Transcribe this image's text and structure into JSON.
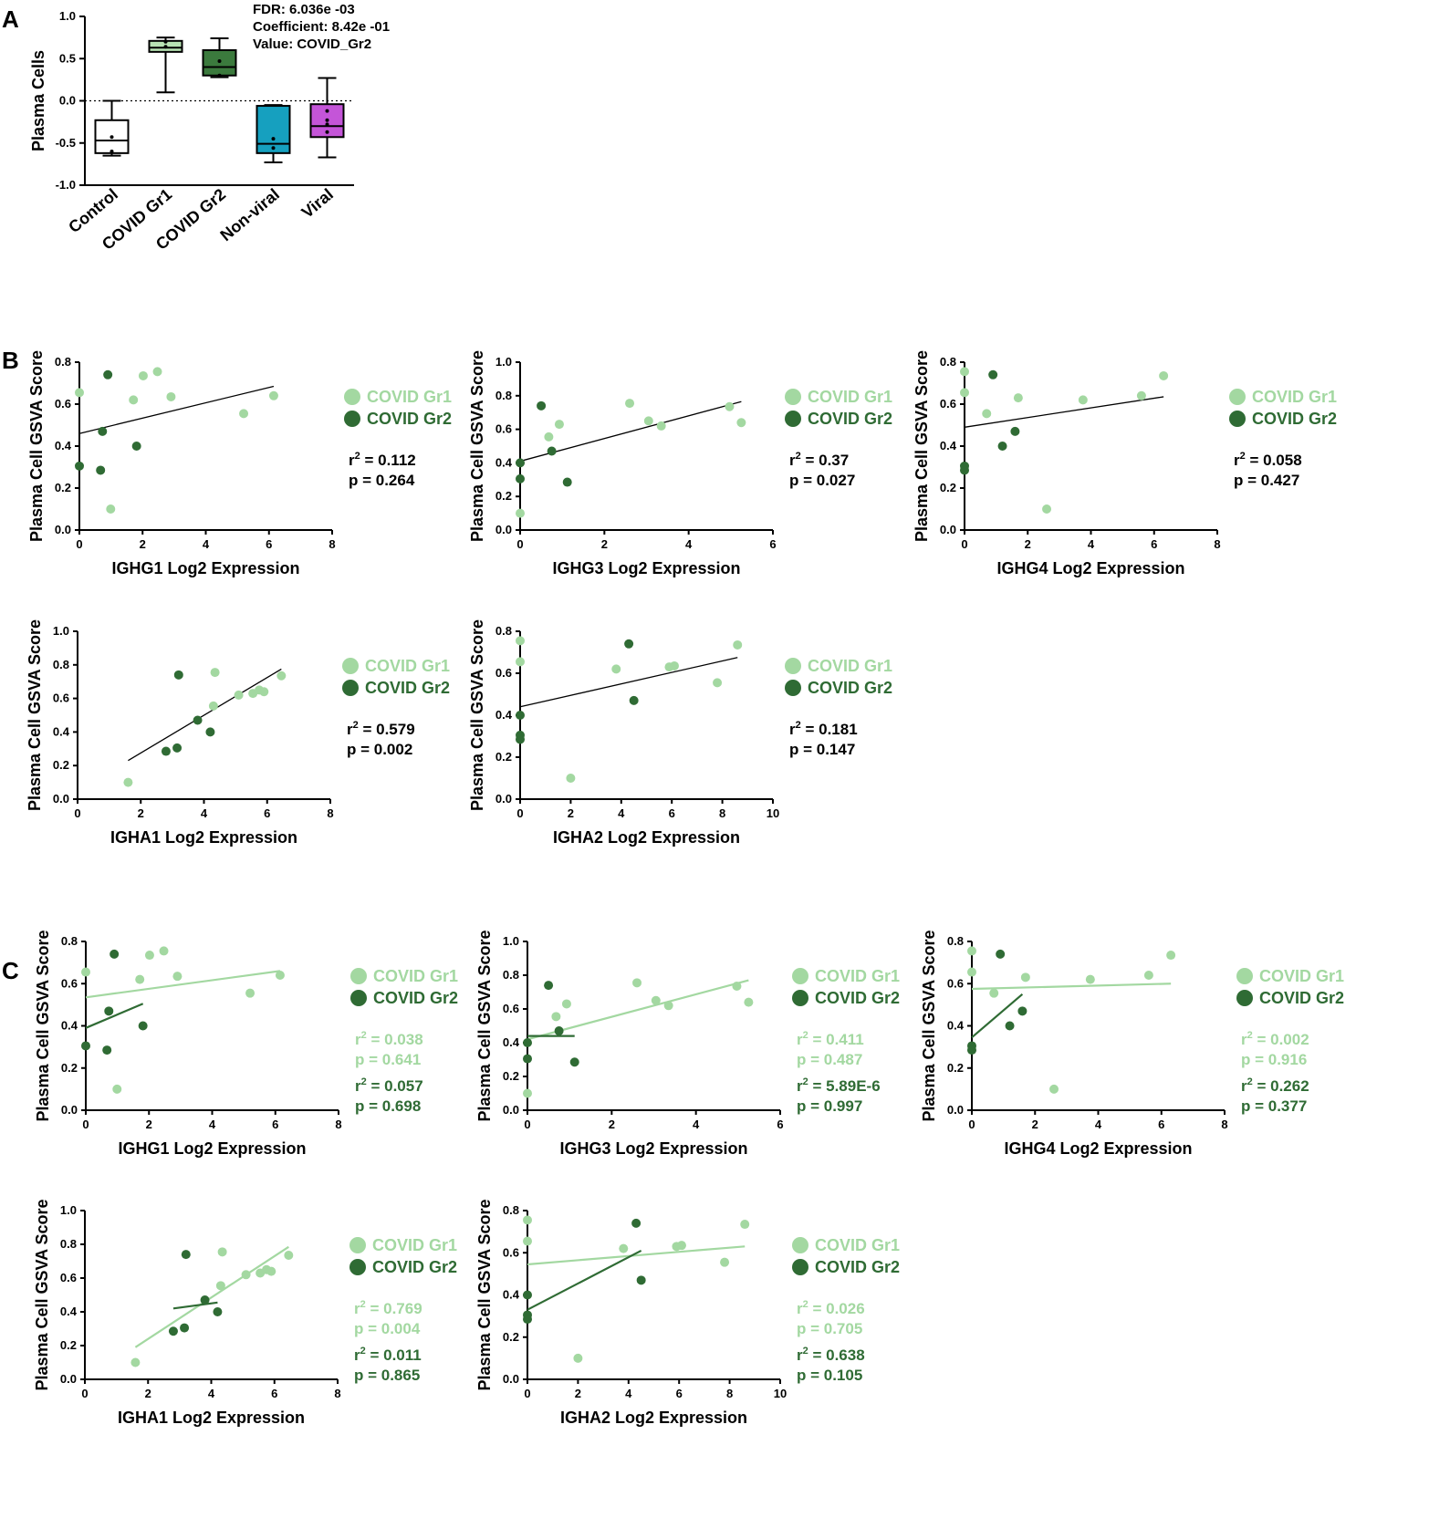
{
  "panels": {
    "A": "A",
    "B": "B",
    "C": "C"
  },
  "colors": {
    "gr1": "#a3d8a1",
    "gr2": "#2f6b34",
    "control": "#ffffff",
    "covid_gr1_box": "#b8e3b3",
    "covid_gr2_box": "#3b7a3d",
    "non_viral_box": "#16a0bf",
    "viral_box": "#c455d8",
    "axis": "#000000",
    "trend_black": "#000000"
  },
  "legend": {
    "gr1": "COVID Gr1",
    "gr2": "COVID Gr2"
  },
  "chart_data": [
    {
      "id": "A",
      "type": "box",
      "ylabel": "Plasma Cells",
      "ylim": [
        -1.0,
        1.0
      ],
      "yticks": [
        "1.0",
        "0.5",
        "0.0",
        "-0.5",
        "-1.0"
      ],
      "reference_line": 0,
      "annotation": [
        "FDR: 6.036e -03",
        "Coefficient: 8.42e -01",
        "Value: COVID_Gr2"
      ],
      "categories": [
        "Control",
        "COVID Gr1",
        "COVID Gr2",
        "Non-viral",
        "Viral"
      ],
      "boxes": [
        {
          "min": -0.65,
          "q1": -0.62,
          "median": -0.47,
          "q3": -0.23,
          "max": 0.0,
          "mean": -0.43,
          "points": [
            -0.6
          ],
          "color_key": "control"
        },
        {
          "min": 0.1,
          "q1": 0.58,
          "median": 0.63,
          "q3": 0.71,
          "max": 0.75,
          "mean": 0.64,
          "points": [
            0.7
          ],
          "color_key": "covid_gr1_box"
        },
        {
          "min": 0.28,
          "q1": 0.3,
          "median": 0.4,
          "q3": 0.6,
          "max": 0.74,
          "mean": 0.47,
          "points": [
            0.3
          ],
          "color_key": "covid_gr2_box"
        },
        {
          "min": -0.73,
          "q1": -0.62,
          "median": -0.51,
          "q3": -0.06,
          "max": -0.05,
          "mean": -0.45,
          "points": [
            -0.56
          ],
          "color_key": "non_viral_box"
        },
        {
          "min": -0.67,
          "q1": -0.43,
          "median": -0.3,
          "q3": -0.04,
          "max": 0.27,
          "mean": -0.23,
          "points": [
            -0.12,
            -0.28,
            -0.37
          ],
          "color_key": "viral_box"
        }
      ]
    },
    {
      "id": "B1",
      "type": "scatter",
      "xlabel": "IGHG1 Log2 Expression",
      "ylabel": "Plasma Cell GSVA Score",
      "xlim": [
        0,
        8
      ],
      "ylim": [
        0,
        0.8
      ],
      "xticks": [
        0,
        2,
        4,
        6,
        8
      ],
      "yticks": [
        "0.0",
        "0.2",
        "0.4",
        "0.6",
        "0.8"
      ],
      "series": [
        {
          "name": "COVID Gr1",
          "key": "gr1",
          "x": [
            0.0,
            0.99,
            1.71,
            2.02,
            2.47,
            2.9,
            5.2,
            6.15
          ],
          "y": [
            0.655,
            0.1,
            0.62,
            0.735,
            0.755,
            0.635,
            0.555,
            0.64
          ]
        },
        {
          "name": "COVID Gr2",
          "key": "gr2",
          "x": [
            0.0,
            0.67,
            0.73,
            0.9,
            1.81
          ],
          "y": [
            0.305,
            0.285,
            0.47,
            0.74,
            0.4
          ]
        }
      ],
      "trends": [
        {
          "key": "black",
          "x": [
            0.0,
            6.15
          ],
          "y": [
            0.46,
            0.685
          ]
        }
      ],
      "stats": [
        {
          "key": "black",
          "r2": "= 0.112",
          "p": "p = 0.264"
        }
      ]
    },
    {
      "id": "B2",
      "type": "scatter",
      "xlabel": "IGHG3 Log2 Expression",
      "ylabel": "Plasma Cell GSVA Score",
      "xlim": [
        0,
        6
      ],
      "ylim": [
        0,
        1.0
      ],
      "xticks": [
        0,
        2,
        4,
        6
      ],
      "yticks": [
        "0.0",
        "0.2",
        "0.4",
        "0.6",
        "0.8",
        "1.0"
      ],
      "series": [
        {
          "name": "COVID Gr1",
          "key": "gr1",
          "x": [
            0.0,
            0.68,
            0.93,
            2.6,
            3.05,
            3.35,
            4.97,
            5.25
          ],
          "y": [
            0.1,
            0.555,
            0.63,
            0.755,
            0.65,
            0.62,
            0.735,
            0.64
          ]
        },
        {
          "name": "COVID Gr2",
          "key": "gr2",
          "x": [
            0.0,
            0.0,
            0.5,
            0.75,
            1.12
          ],
          "y": [
            0.305,
            0.4,
            0.74,
            0.47,
            0.285
          ]
        }
      ],
      "trends": [
        {
          "key": "black",
          "x": [
            0.0,
            5.25
          ],
          "y": [
            0.41,
            0.765
          ]
        }
      ],
      "stats": [
        {
          "key": "black",
          "r2": "= 0.37",
          "p": "p = 0.027"
        }
      ]
    },
    {
      "id": "B3",
      "type": "scatter",
      "xlabel": "IGHG4 Log2 Expression",
      "ylabel": "Plasma Cell GSVA Score",
      "xlim": [
        0,
        8
      ],
      "ylim": [
        0,
        0.8
      ],
      "xticks": [
        0,
        2,
        4,
        6,
        8
      ],
      "yticks": [
        "0.0",
        "0.2",
        "0.4",
        "0.6",
        "0.8"
      ],
      "series": [
        {
          "name": "COVID Gr1",
          "key": "gr1",
          "x": [
            0.0,
            0.0,
            0.7,
            1.7,
            2.6,
            3.75,
            5.6,
            6.3
          ],
          "y": [
            0.755,
            0.655,
            0.555,
            0.63,
            0.1,
            0.62,
            0.64,
            0.735
          ]
        },
        {
          "name": "COVID Gr2",
          "key": "gr2",
          "x": [
            0.0,
            0.0,
            0.9,
            1.2,
            1.6
          ],
          "y": [
            0.305,
            0.285,
            0.74,
            0.4,
            0.47
          ]
        }
      ],
      "trends": [
        {
          "key": "black",
          "x": [
            0.0,
            6.3
          ],
          "y": [
            0.49,
            0.635
          ]
        }
      ],
      "stats": [
        {
          "key": "black",
          "r2": "= 0.058",
          "p": "p = 0.427"
        }
      ]
    },
    {
      "id": "B4",
      "type": "scatter",
      "xlabel": "IGHA1 Log2 Expression",
      "ylabel": "Plasma Cell GSVA Score",
      "xlim": [
        0,
        8
      ],
      "ylim": [
        0,
        1.0
      ],
      "xticks": [
        0,
        2,
        4,
        6,
        8
      ],
      "yticks": [
        "0.0",
        "0.2",
        "0.4",
        "0.6",
        "0.8",
        "1.0"
      ],
      "series": [
        {
          "name": "COVID Gr1",
          "key": "gr1",
          "x": [
            1.6,
            4.35,
            4.3,
            5.1,
            5.55,
            5.75,
            5.9,
            6.45
          ],
          "y": [
            0.1,
            0.755,
            0.555,
            0.62,
            0.63,
            0.65,
            0.64,
            0.735
          ]
        },
        {
          "name": "COVID Gr2",
          "key": "gr2",
          "x": [
            2.8,
            3.15,
            3.2,
            3.8,
            4.2
          ],
          "y": [
            0.285,
            0.305,
            0.74,
            0.47,
            0.4
          ]
        }
      ],
      "trends": [
        {
          "key": "black",
          "x": [
            1.6,
            6.45
          ],
          "y": [
            0.23,
            0.775
          ]
        }
      ],
      "stats": [
        {
          "key": "black",
          "r2": "= 0.579",
          "p": "p = 0.002"
        }
      ]
    },
    {
      "id": "B5",
      "type": "scatter",
      "xlabel": "IGHA2 Log2 Expression",
      "ylabel": "Plasma Cell GSVA Score",
      "xlim": [
        0,
        10
      ],
      "ylim": [
        0,
        0.8
      ],
      "xticks": [
        0,
        2,
        4,
        6,
        8,
        10
      ],
      "yticks": [
        "0.0",
        "0.2",
        "0.4",
        "0.6",
        "0.8"
      ],
      "series": [
        {
          "name": "COVID Gr1",
          "key": "gr1",
          "x": [
            0.0,
            0.0,
            2.0,
            3.8,
            5.9,
            6.1,
            7.8,
            8.6
          ],
          "y": [
            0.755,
            0.655,
            0.1,
            0.62,
            0.63,
            0.635,
            0.555,
            0.735
          ]
        },
        {
          "name": "COVID Gr2",
          "key": "gr2",
          "x": [
            0.0,
            0.0,
            0.0,
            4.3,
            4.5
          ],
          "y": [
            0.4,
            0.305,
            0.285,
            0.74,
            0.47
          ]
        }
      ],
      "trends": [
        {
          "key": "black",
          "x": [
            0.0,
            8.6
          ],
          "y": [
            0.44,
            0.675
          ]
        }
      ],
      "stats": [
        {
          "key": "black",
          "r2": "= 0.181",
          "p": "p = 0.147"
        }
      ]
    },
    {
      "id": "C1",
      "type": "scatter",
      "xlabel": "IGHG1 Log2 Expression",
      "ylabel": "Plasma Cell GSVA Score",
      "xlim": [
        0,
        8
      ],
      "ylim": [
        0,
        0.8
      ],
      "xticks": [
        0,
        2,
        4,
        6,
        8
      ],
      "yticks": [
        "0.0",
        "0.2",
        "0.4",
        "0.6",
        "0.8"
      ],
      "series": [
        {
          "name": "COVID Gr1",
          "key": "gr1",
          "x": [
            0.0,
            0.99,
            1.71,
            2.02,
            2.47,
            2.9,
            5.2,
            6.15
          ],
          "y": [
            0.655,
            0.1,
            0.62,
            0.735,
            0.755,
            0.635,
            0.555,
            0.64
          ]
        },
        {
          "name": "COVID Gr2",
          "key": "gr2",
          "x": [
            0.0,
            0.67,
            0.73,
            0.9,
            1.81
          ],
          "y": [
            0.305,
            0.285,
            0.47,
            0.74,
            0.4
          ]
        }
      ],
      "trends": [
        {
          "key": "gr1",
          "x": [
            0.0,
            6.15
          ],
          "y": [
            0.535,
            0.66
          ]
        },
        {
          "key": "gr2",
          "x": [
            0.0,
            1.81
          ],
          "y": [
            0.39,
            0.505
          ]
        }
      ],
      "stats": [
        {
          "key": "gr1",
          "r2": "= 0.038",
          "p": "p = 0.641"
        },
        {
          "key": "gr2",
          "r2": "= 0.057",
          "p": "p = 0.698"
        }
      ]
    },
    {
      "id": "C2",
      "type": "scatter",
      "xlabel": "IGHG3 Log2 Expression",
      "ylabel": "Plasma Cell GSVA Score",
      "xlim": [
        0,
        6
      ],
      "ylim": [
        0,
        1.0
      ],
      "xticks": [
        0,
        2,
        4,
        6
      ],
      "yticks": [
        "0.0",
        "0.2",
        "0.4",
        "0.6",
        "0.8",
        "1.0"
      ],
      "series": [
        {
          "name": "COVID Gr1",
          "key": "gr1",
          "x": [
            0.0,
            0.68,
            0.93,
            2.6,
            3.05,
            3.35,
            4.97,
            5.25
          ],
          "y": [
            0.1,
            0.555,
            0.63,
            0.755,
            0.65,
            0.62,
            0.735,
            0.64
          ]
        },
        {
          "name": "COVID Gr2",
          "key": "gr2",
          "x": [
            0.0,
            0.0,
            0.5,
            0.75,
            1.12
          ],
          "y": [
            0.305,
            0.4,
            0.74,
            0.47,
            0.285
          ]
        }
      ],
      "trends": [
        {
          "key": "gr1",
          "x": [
            0.0,
            5.25
          ],
          "y": [
            0.42,
            0.77
          ]
        },
        {
          "key": "gr2",
          "x": [
            0.0,
            1.12
          ],
          "y": [
            0.44,
            0.44
          ]
        }
      ],
      "stats": [
        {
          "key": "gr1",
          "r2": "= 0.411",
          "p": "p = 0.487"
        },
        {
          "key": "gr2",
          "r2": "= 5.89E-6",
          "p": "p = 0.997"
        }
      ]
    },
    {
      "id": "C3",
      "type": "scatter",
      "xlabel": "IGHG4 Log2 Expression",
      "ylabel": "Plasma Cell GSVA Score",
      "xlim": [
        0,
        8
      ],
      "ylim": [
        0,
        0.8
      ],
      "xticks": [
        0,
        2,
        4,
        6,
        8
      ],
      "yticks": [
        "0.0",
        "0.2",
        "0.4",
        "0.6",
        "0.8"
      ],
      "series": [
        {
          "name": "COVID Gr1",
          "key": "gr1",
          "x": [
            0.0,
            0.0,
            0.7,
            1.7,
            2.6,
            3.75,
            5.6,
            6.3
          ],
          "y": [
            0.755,
            0.655,
            0.555,
            0.63,
            0.1,
            0.62,
            0.64,
            0.735
          ]
        },
        {
          "name": "COVID Gr2",
          "key": "gr2",
          "x": [
            0.0,
            0.0,
            0.9,
            1.2,
            1.6
          ],
          "y": [
            0.305,
            0.285,
            0.74,
            0.4,
            0.47
          ]
        }
      ],
      "trends": [
        {
          "key": "gr1",
          "x": [
            0.0,
            6.3
          ],
          "y": [
            0.575,
            0.6
          ]
        },
        {
          "key": "gr2",
          "x": [
            0.0,
            1.6
          ],
          "y": [
            0.345,
            0.55
          ]
        }
      ],
      "stats": [
        {
          "key": "gr1",
          "r2": "= 0.002",
          "p": "p = 0.916"
        },
        {
          "key": "gr2",
          "r2": "= 0.262",
          "p": "p = 0.377"
        }
      ]
    },
    {
      "id": "C4",
      "type": "scatter",
      "xlabel": "IGHA1 Log2 Expression",
      "ylabel": "Plasma Cell GSVA Score",
      "xlim": [
        0,
        8
      ],
      "ylim": [
        0,
        1.0
      ],
      "xticks": [
        0,
        2,
        4,
        6,
        8
      ],
      "yticks": [
        "0.0",
        "0.2",
        "0.4",
        "0.6",
        "0.8",
        "1.0"
      ],
      "series": [
        {
          "name": "COVID Gr1",
          "key": "gr1",
          "x": [
            1.6,
            4.35,
            4.3,
            5.1,
            5.55,
            5.75,
            5.9,
            6.45
          ],
          "y": [
            0.1,
            0.755,
            0.555,
            0.62,
            0.63,
            0.65,
            0.64,
            0.735
          ]
        },
        {
          "name": "COVID Gr2",
          "key": "gr2",
          "x": [
            2.8,
            3.15,
            3.2,
            3.8,
            4.2
          ],
          "y": [
            0.285,
            0.305,
            0.74,
            0.47,
            0.4
          ]
        }
      ],
      "trends": [
        {
          "key": "gr1",
          "x": [
            1.6,
            6.45
          ],
          "y": [
            0.19,
            0.785
          ]
        },
        {
          "key": "gr2",
          "x": [
            2.8,
            4.2
          ],
          "y": [
            0.42,
            0.455
          ]
        }
      ],
      "stats": [
        {
          "key": "gr1",
          "r2": "= 0.769",
          "p": "p = 0.004"
        },
        {
          "key": "gr2",
          "r2": "= 0.011",
          "p": "p = 0.865"
        }
      ]
    },
    {
      "id": "C5",
      "type": "scatter",
      "xlabel": "IGHA2 Log2 Expression",
      "ylabel": "Plasma Cell GSVA Score",
      "xlim": [
        0,
        10
      ],
      "ylim": [
        0,
        0.8
      ],
      "xticks": [
        0,
        2,
        4,
        6,
        8,
        10
      ],
      "yticks": [
        "0.0",
        "0.2",
        "0.4",
        "0.6",
        "0.8"
      ],
      "series": [
        {
          "name": "COVID Gr1",
          "key": "gr1",
          "x": [
            0.0,
            0.0,
            2.0,
            3.8,
            5.9,
            6.1,
            7.8,
            8.6
          ],
          "y": [
            0.755,
            0.655,
            0.1,
            0.62,
            0.63,
            0.635,
            0.555,
            0.735
          ]
        },
        {
          "name": "COVID Gr2",
          "key": "gr2",
          "x": [
            0.0,
            0.0,
            0.0,
            4.3,
            4.5
          ],
          "y": [
            0.4,
            0.305,
            0.285,
            0.74,
            0.47
          ]
        }
      ],
      "trends": [
        {
          "key": "gr1",
          "x": [
            0.0,
            8.6
          ],
          "y": [
            0.545,
            0.63
          ]
        },
        {
          "key": "gr2",
          "x": [
            0.0,
            4.5
          ],
          "y": [
            0.33,
            0.61
          ]
        }
      ],
      "stats": [
        {
          "key": "gr1",
          "r2": "= 0.026",
          "p": "p = 0.705"
        },
        {
          "key": "gr2",
          "r2": "= 0.638",
          "p": "p = 0.105"
        }
      ]
    }
  ]
}
